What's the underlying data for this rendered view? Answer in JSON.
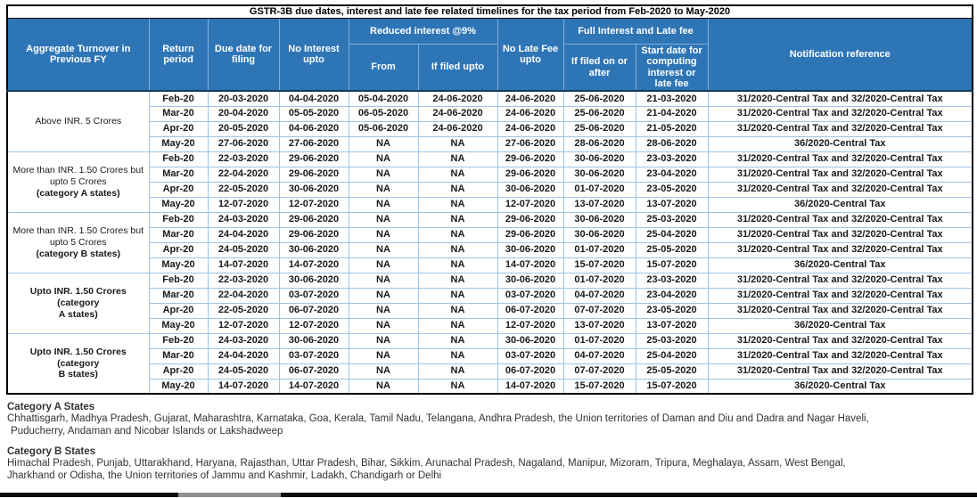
{
  "title": "GSTR-3B due dates, interest and late fee related timelines for the tax period from Feb-2020 to May-2020",
  "columns": {
    "aggregate_turnover": "Aggregate Turnover in Previous FY",
    "return_period": "Return period",
    "due_date_for_filing": "Due date for filing",
    "no_interest_upto": "No Interest upto",
    "reduced_interest_group": "Reduced interest @9%",
    "reduced_from": "From",
    "reduced_if_filed_upto": "If filed upto",
    "no_late_fee_upto": "No Late Fee upto",
    "full_interest_group": "Full Interest and Late fee",
    "full_if_filed_on_or_after": "If filed on or after",
    "full_start_date": "Start date for computing interest or late fee",
    "notification_reference": "Notification reference"
  },
  "column_keys": [
    "return-period",
    "due-date-for-filing",
    "no-interest-upto",
    "reduced-from",
    "reduced-if-filed-upto",
    "no-late-fee-upto",
    "if-filed-on-or-after",
    "start-date-computing",
    "notification-reference"
  ],
  "groups": [
    {
      "label_lines": [
        {
          "text": "Above INR. 5 Crores",
          "bold": false
        }
      ],
      "rows": [
        [
          "Feb-20",
          "20-03-2020",
          "04-04-2020",
          "05-04-2020",
          "24-06-2020",
          "24-06-2020",
          "25-06-2020",
          "21-03-2020",
          "31/2020-Central Tax and 32/2020-Central Tax"
        ],
        [
          "Mar-20",
          "20-04-2020",
          "05-05-2020",
          "06-05-2020",
          "24-06-2020",
          "24-06-2020",
          "25-06-2020",
          "21-04-2020",
          "31/2020-Central Tax and 32/2020-Central Tax"
        ],
        [
          "Apr-20",
          "20-05-2020",
          "04-06-2020",
          "05-06-2020",
          "24-06-2020",
          "24-06-2020",
          "25-06-2020",
          "21-05-2020",
          "31/2020-Central Tax and 32/2020-Central Tax"
        ],
        [
          "May-20",
          "27-06-2020",
          "27-06-2020",
          "NA",
          "NA",
          "27-06-2020",
          "28-06-2020",
          "28-06-2020",
          "36/2020-Central Tax"
        ]
      ]
    },
    {
      "label_lines": [
        {
          "text": "More than INR. 1.50 Crores but",
          "bold": false
        },
        {
          "text": "upto 5 Crores",
          "bold": false
        },
        {
          "text": "(category A states)",
          "bold": true
        }
      ],
      "rows": [
        [
          "Feb-20",
          "22-03-2020",
          "29-06-2020",
          "NA",
          "NA",
          "29-06-2020",
          "30-06-2020",
          "23-03-2020",
          "31/2020-Central Tax and 32/2020-Central Tax"
        ],
        [
          "Mar-20",
          "22-04-2020",
          "29-06-2020",
          "NA",
          "NA",
          "29-06-2020",
          "30-06-2020",
          "23-04-2020",
          "31/2020-Central Tax and 32/2020-Central Tax"
        ],
        [
          "Apr-20",
          "22-05-2020",
          "30-06-2020",
          "NA",
          "NA",
          "30-06-2020",
          "01-07-2020",
          "23-05-2020",
          "31/2020-Central Tax and 32/2020-Central Tax"
        ],
        [
          "May-20",
          "12-07-2020",
          "12-07-2020",
          "NA",
          "NA",
          "12-07-2020",
          "13-07-2020",
          "13-07-2020",
          "36/2020-Central Tax"
        ]
      ]
    },
    {
      "label_lines": [
        {
          "text": "More than INR. 1.50 Crores but",
          "bold": false
        },
        {
          "text": "upto 5 Crores",
          "bold": false
        },
        {
          "text": "(category B states)",
          "bold": true
        }
      ],
      "rows": [
        [
          "Feb-20",
          "24-03-2020",
          "29-06-2020",
          "NA",
          "NA",
          "29-06-2020",
          "30-06-2020",
          "25-03-2020",
          "31/2020-Central Tax and 32/2020-Central Tax"
        ],
        [
          "Mar-20",
          "24-04-2020",
          "29-06-2020",
          "NA",
          "NA",
          "29-06-2020",
          "30-06-2020",
          "25-04-2020",
          "31/2020-Central Tax and 32/2020-Central Tax"
        ],
        [
          "Apr-20",
          "24-05-2020",
          "30-06-2020",
          "NA",
          "NA",
          "30-06-2020",
          "01-07-2020",
          "25-05-2020",
          "31/2020-Central Tax and 32/2020-Central Tax"
        ],
        [
          "May-20",
          "14-07-2020",
          "14-07-2020",
          "NA",
          "NA",
          "14-07-2020",
          "15-07-2020",
          "15-07-2020",
          "36/2020-Central Tax"
        ]
      ]
    },
    {
      "label_lines": [
        {
          "text": "Upto INR. 1.50 Crores (category",
          "bold": true
        },
        {
          "text": "A states)",
          "bold": true
        }
      ],
      "rows": [
        [
          "Feb-20",
          "22-03-2020",
          "30-06-2020",
          "NA",
          "NA",
          "30-06-2020",
          "01-07-2020",
          "23-03-2020",
          "31/2020-Central Tax and 32/2020-Central Tax"
        ],
        [
          "Mar-20",
          "22-04-2020",
          "03-07-2020",
          "NA",
          "NA",
          "03-07-2020",
          "04-07-2020",
          "23-04-2020",
          "31/2020-Central Tax and 32/2020-Central Tax"
        ],
        [
          "Apr-20",
          "22-05-2020",
          "06-07-2020",
          "NA",
          "NA",
          "06-07-2020",
          "07-07-2020",
          "23-05-2020",
          "31/2020-Central Tax and 32/2020-Central Tax"
        ],
        [
          "May-20",
          "12-07-2020",
          "12-07-2020",
          "NA",
          "NA",
          "12-07-2020",
          "13-07-2020",
          "13-07-2020",
          "36/2020-Central Tax"
        ]
      ]
    },
    {
      "label_lines": [
        {
          "text": "Upto INR. 1.50 Crores (category",
          "bold": true
        },
        {
          "text": "B states)",
          "bold": true
        }
      ],
      "rows": [
        [
          "Feb-20",
          "24-03-2020",
          "30-06-2020",
          "NA",
          "NA",
          "30-06-2020",
          "01-07-2020",
          "25-03-2020",
          "31/2020-Central Tax and 32/2020-Central Tax"
        ],
        [
          "Mar-20",
          "24-04-2020",
          "03-07-2020",
          "NA",
          "NA",
          "03-07-2020",
          "04-07-2020",
          "25-04-2020",
          "31/2020-Central Tax and 32/2020-Central Tax"
        ],
        [
          "Apr-20",
          "24-05-2020",
          "06-07-2020",
          "NA",
          "NA",
          "06-07-2020",
          "07-07-2020",
          "25-05-2020",
          "31/2020-Central Tax and 32/2020-Central Tax"
        ],
        [
          "May-20",
          "14-07-2020",
          "14-07-2020",
          "NA",
          "NA",
          "14-07-2020",
          "15-07-2020",
          "15-07-2020",
          "36/2020-Central Tax"
        ]
      ]
    }
  ],
  "footnotes": {
    "category_a": {
      "heading": "Category A States",
      "lines": [
        "Chhattisgarh, Madhya Pradesh, Gujarat, Maharashtra, Karnataka, Goa, Kerala, Tamil Nadu, Telangana, Andhra Pradesh, the Union territories of Daman and Diu and Dadra and Nagar Haveli,",
        "Puducherry, Andaman and Nicobar Islands or Lakshadweep"
      ]
    },
    "category_b": {
      "heading": "Category B States",
      "lines": [
        "Himachal Pradesh, Punjab, Uttarakhand, Haryana, Rajasthan, Uttar Pradesh, Bihar, Sikkim, Arunachal Pradesh, Nagaland, Manipur, Mizoram, Tripura, Meghalaya, Assam, West Bengal,",
        "Jharkhand or Odisha, the Union territories of Jammu and Kashmir, Ladakh, Chandigarh or Delhi"
      ]
    }
  },
  "colors": {
    "header_bg": "#2e75b6",
    "header_grid": "#7eaedc",
    "data_grid": "#9dc3e6",
    "outer_border": "#000000",
    "header_text": "#ffffff",
    "data_text": "#1a1a1a",
    "title_text": "#000000",
    "footnote_text": "#333333"
  }
}
